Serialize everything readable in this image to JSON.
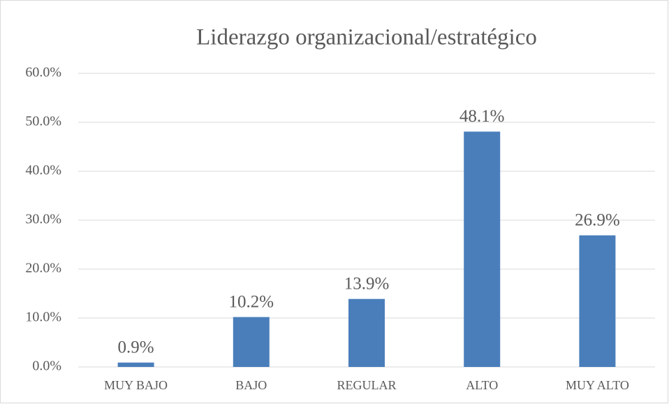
{
  "chart_data": {
    "type": "bar",
    "title": "Liderazgo organizacional/estratégico",
    "categories": [
      "MUY BAJO",
      "BAJO",
      "REGULAR",
      "ALTO",
      "MUY ALTO"
    ],
    "values": [
      0.9,
      10.2,
      13.9,
      48.1,
      26.9
    ],
    "value_labels": [
      "0.9%",
      "10.2%",
      "13.9%",
      "48.1%",
      "26.9%"
    ],
    "color": "#4a7ebb",
    "ylim": [
      0,
      60
    ],
    "yticks": [
      {
        "value": 0,
        "label": "0.0%"
      },
      {
        "value": 10,
        "label": "10.0%"
      },
      {
        "value": 20,
        "label": "20.0%"
      },
      {
        "value": 30,
        "label": "30.0%"
      },
      {
        "value": 40,
        "label": "40.0%"
      },
      {
        "value": 50,
        "label": "50.0%"
      },
      {
        "value": 60,
        "label": "60.0%"
      }
    ],
    "grid": true
  }
}
